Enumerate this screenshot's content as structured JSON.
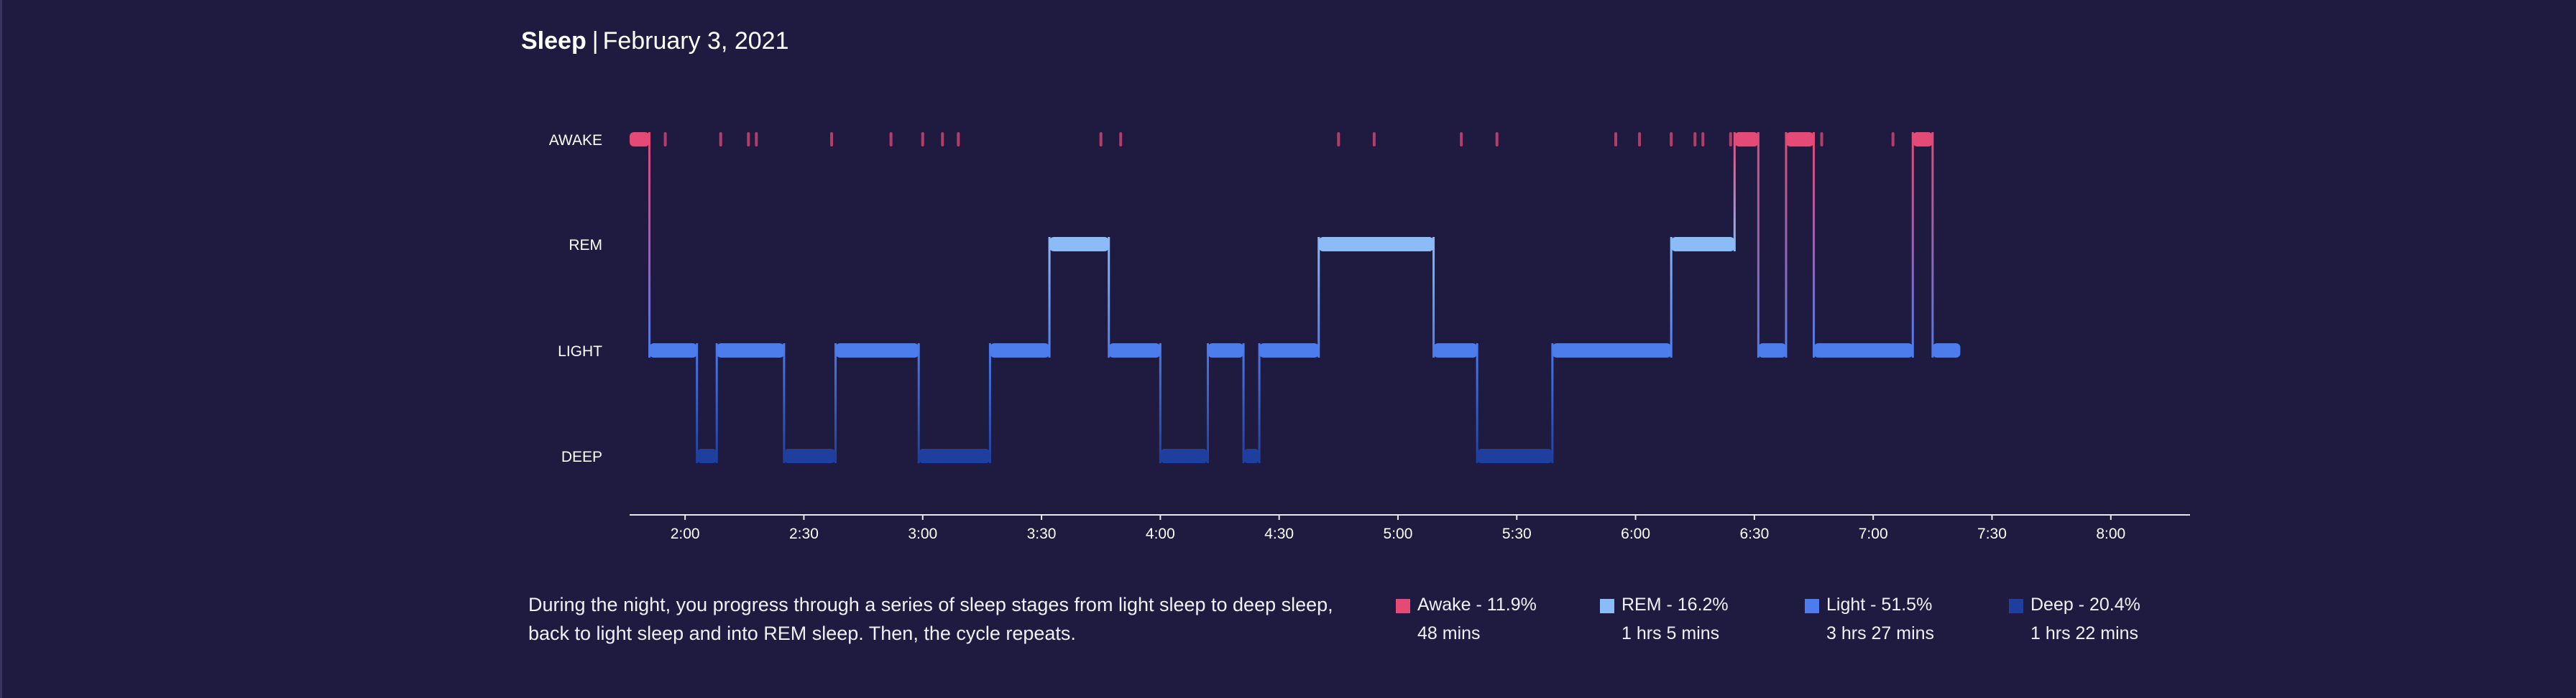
{
  "header": {
    "title": "Sleep",
    "separator": "|",
    "date": "February 3, 2021"
  },
  "colors": {
    "background": "#1f1b40",
    "awake": "#e34a75",
    "rem": "#8bbcf7",
    "light": "#4d7cec",
    "deep": "#1f3f9e",
    "axis": "#e6e6ee"
  },
  "description": "During the night, you progress through a series of sleep stages from light sleep to deep sleep, back to light sleep and into REM sleep. Then, the cycle repeats.",
  "legend": [
    {
      "key": "awake",
      "label": "Awake - 11.9%",
      "duration": "48 mins"
    },
    {
      "key": "rem",
      "label": "REM - 16.2%",
      "duration": "1 hrs 5 mins"
    },
    {
      "key": "light",
      "label": "Light - 51.5%",
      "duration": "3 hrs 27 mins"
    },
    {
      "key": "deep",
      "label": "Deep - 20.4%",
      "duration": "1 hrs 22 mins"
    }
  ],
  "chart_data": {
    "type": "step",
    "levels": [
      "AWAKE",
      "REM",
      "LIGHT",
      "DEEP"
    ],
    "x_ticks": [
      "2:00",
      "2:30",
      "3:00",
      "3:30",
      "4:00",
      "4:30",
      "5:00",
      "5:30",
      "6:00",
      "6:30",
      "7:00",
      "7:30",
      "8:00"
    ],
    "x_range": [
      "1:46",
      "8:20"
    ],
    "segments": [
      {
        "stage": "AWAKE",
        "start": "1:46",
        "end": "1:51"
      },
      {
        "stage": "LIGHT",
        "start": "1:51",
        "end": "2:03"
      },
      {
        "stage": "DEEP",
        "start": "2:03",
        "end": "2:08"
      },
      {
        "stage": "LIGHT",
        "start": "2:08",
        "end": "2:25"
      },
      {
        "stage": "DEEP",
        "start": "2:25",
        "end": "2:38"
      },
      {
        "stage": "LIGHT",
        "start": "2:38",
        "end": "2:59"
      },
      {
        "stage": "DEEP",
        "start": "2:59",
        "end": "3:17"
      },
      {
        "stage": "LIGHT",
        "start": "3:17",
        "end": "3:32"
      },
      {
        "stage": "REM",
        "start": "3:32",
        "end": "3:47"
      },
      {
        "stage": "LIGHT",
        "start": "3:47",
        "end": "4:00"
      },
      {
        "stage": "DEEP",
        "start": "4:00",
        "end": "4:12"
      },
      {
        "stage": "LIGHT",
        "start": "4:12",
        "end": "4:21"
      },
      {
        "stage": "DEEP",
        "start": "4:21",
        "end": "4:25"
      },
      {
        "stage": "LIGHT",
        "start": "4:25",
        "end": "4:40"
      },
      {
        "stage": "REM",
        "start": "4:40",
        "end": "5:09"
      },
      {
        "stage": "LIGHT",
        "start": "5:09",
        "end": "5:20"
      },
      {
        "stage": "DEEP",
        "start": "5:20",
        "end": "5:39"
      },
      {
        "stage": "LIGHT",
        "start": "5:39",
        "end": "6:09"
      },
      {
        "stage": "REM",
        "start": "6:09",
        "end": "6:25"
      },
      {
        "stage": "AWAKE",
        "start": "6:25",
        "end": "6:31"
      },
      {
        "stage": "LIGHT",
        "start": "6:31",
        "end": "6:38"
      },
      {
        "stage": "AWAKE",
        "start": "6:38",
        "end": "6:45"
      },
      {
        "stage": "LIGHT",
        "start": "6:45",
        "end": "7:10"
      },
      {
        "stage": "AWAKE",
        "start": "7:10",
        "end": "7:15"
      },
      {
        "stage": "LIGHT",
        "start": "7:15",
        "end": "7:22"
      }
    ],
    "brief_awakenings": [
      "1:55",
      "2:09",
      "2:16",
      "2:18",
      "2:37",
      "2:52",
      "3:00",
      "3:05",
      "3:09",
      "3:45",
      "3:50",
      "4:45",
      "4:54",
      "5:16",
      "5:25",
      "5:55",
      "6:01",
      "6:09",
      "6:15",
      "6:17",
      "6:24",
      "6:47",
      "7:05"
    ]
  }
}
